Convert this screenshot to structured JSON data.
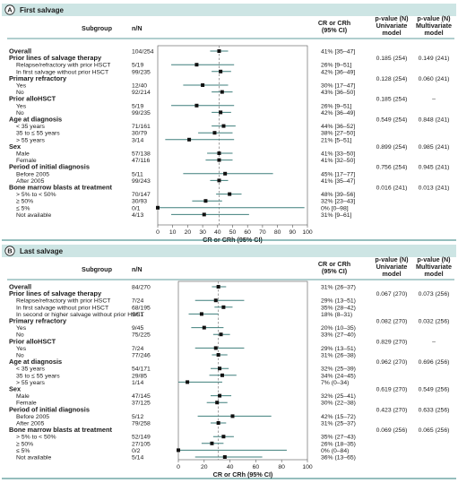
{
  "colors": {
    "band": "#cde5e4",
    "accent": "#2b7d7b",
    "ci_line": "#3f7f7c",
    "marker": "#111111",
    "ref_line": "#8a8a8a",
    "text": "#1a1a1a"
  },
  "chart_data": [
    {
      "type": "forest",
      "panel_letter": "A",
      "panel_title": "First salvage",
      "headers": {
        "subgroup": "Subgroup",
        "nn": "n/N",
        "cr": "CR or CRh (95% CI)",
        "pu": "p-value (N) Univariate model",
        "pm": "p-value (N) Multivariate model"
      },
      "xlabel": "CR or CRh (95% CI)",
      "xlim": [
        0,
        100
      ],
      "xticks": [
        "0",
        "10",
        "20",
        "30",
        "40",
        "50",
        "60",
        "70",
        "80",
        "90",
        "100"
      ],
      "reference_value": 41,
      "rows": [
        {
          "label": "Overall",
          "kind": "group",
          "n": "104/254",
          "est": 41,
          "lo": 35,
          "hi": 47,
          "text": "41% [35–47]",
          "pu": "",
          "pm": ""
        },
        {
          "label": "Prior lines of salvage therapy",
          "kind": "group",
          "n": "",
          "est": null,
          "lo": null,
          "hi": null,
          "text": "",
          "pu": "0.185 (254)",
          "pm": "0.149 (241)"
        },
        {
          "label": "Relapse/refractory with prior HSCT",
          "kind": "item",
          "n": "5/19",
          "est": 26,
          "lo": 9,
          "hi": 51,
          "text": "26% [9–51]",
          "pu": "",
          "pm": ""
        },
        {
          "label": "In first salvage without prior HSCT",
          "kind": "item",
          "n": "99/235",
          "est": 42,
          "lo": 36,
          "hi": 49,
          "text": "42% [36–49]",
          "pu": "",
          "pm": ""
        },
        {
          "label": "Primary refractory",
          "kind": "group",
          "n": "",
          "est": null,
          "lo": null,
          "hi": null,
          "text": "",
          "pu": "0.128 (254)",
          "pm": "0.060 (241)"
        },
        {
          "label": "Yes",
          "kind": "item",
          "n": "12/40",
          "est": 30,
          "lo": 17,
          "hi": 47,
          "text": "30% [17–47]",
          "pu": "",
          "pm": ""
        },
        {
          "label": "No",
          "kind": "item",
          "n": "92/214",
          "est": 43,
          "lo": 36,
          "hi": 50,
          "text": "43% [36–50]",
          "pu": "",
          "pm": ""
        },
        {
          "label": "Prior alloHSCT",
          "kind": "group",
          "n": "",
          "est": null,
          "lo": null,
          "hi": null,
          "text": "",
          "pu": "0.185 (254)",
          "pm": "–"
        },
        {
          "label": "Yes",
          "kind": "item",
          "n": "5/19",
          "est": 26,
          "lo": 9,
          "hi": 51,
          "text": "26% [9–51]",
          "pu": "",
          "pm": ""
        },
        {
          "label": "No",
          "kind": "item",
          "n": "99/235",
          "est": 42,
          "lo": 36,
          "hi": 49,
          "text": "42% [36–49]",
          "pu": "",
          "pm": ""
        },
        {
          "label": "Age at diagnosis",
          "kind": "group",
          "n": "",
          "est": null,
          "lo": null,
          "hi": null,
          "text": "",
          "pu": "0.549 (254)",
          "pm": "0.848 (241)"
        },
        {
          "label": "< 35 years",
          "kind": "item",
          "n": "71/161",
          "est": 44,
          "lo": 36,
          "hi": 52,
          "text": "44% [36–52]",
          "pu": "",
          "pm": ""
        },
        {
          "label": "35 to ≤ 55 years",
          "kind": "item",
          "n": "30/79",
          "est": 38,
          "lo": 27,
          "hi": 50,
          "text": "38% [27–50]",
          "pu": "",
          "pm": ""
        },
        {
          "label": "> 55 years",
          "kind": "item",
          "n": "3/14",
          "est": 21,
          "lo": 5,
          "hi": 51,
          "text": "21% [5–51]",
          "pu": "",
          "pm": ""
        },
        {
          "label": "Sex",
          "kind": "group",
          "n": "",
          "est": null,
          "lo": null,
          "hi": null,
          "text": "",
          "pu": "0.899 (254)",
          "pm": "0.985 (241)"
        },
        {
          "label": "Male",
          "kind": "item",
          "n": "57/138",
          "est": 41,
          "lo": 33,
          "hi": 50,
          "text": "41% [33–50]",
          "pu": "",
          "pm": ""
        },
        {
          "label": "Female",
          "kind": "item",
          "n": "47/116",
          "est": 41,
          "lo": 32,
          "hi": 50,
          "text": "41% [32–50]",
          "pu": "",
          "pm": ""
        },
        {
          "label": "Period of initial diagnosis",
          "kind": "group",
          "n": "",
          "est": null,
          "lo": null,
          "hi": null,
          "text": "",
          "pu": "0.756 (254)",
          "pm": "0.945 (241)"
        },
        {
          "label": "Before 2005",
          "kind": "item",
          "n": "5/11",
          "est": 45,
          "lo": 17,
          "hi": 77,
          "text": "45% [17–77]",
          "pu": "",
          "pm": ""
        },
        {
          "label": "After 2005",
          "kind": "item",
          "n": "99/243",
          "est": 41,
          "lo": 35,
          "hi": 47,
          "text": "41% [35–47]",
          "pu": "",
          "pm": ""
        },
        {
          "label": "Bone marrow blasts at treatment",
          "kind": "group",
          "n": "",
          "est": null,
          "lo": null,
          "hi": null,
          "text": "",
          "pu": "0.016 (241)",
          "pm": "0.013 (241)"
        },
        {
          "label": "> 5% to < 50%",
          "kind": "item",
          "n": "70/147",
          "est": 48,
          "lo": 39,
          "hi": 56,
          "text": "48% [39–56]",
          "pu": "",
          "pm": ""
        },
        {
          "label": "≥ 50%",
          "kind": "item",
          "n": "30/93",
          "est": 32,
          "lo": 23,
          "hi": 43,
          "text": "32% [23–43]",
          "pu": "",
          "pm": ""
        },
        {
          "label": "≤ 5%",
          "kind": "item",
          "n": "0/1",
          "est": 0,
          "lo": 0,
          "hi": 98,
          "text": "0% [0–98]",
          "pu": "",
          "pm": ""
        },
        {
          "label": "Not available",
          "kind": "item",
          "n": "4/13",
          "est": 31,
          "lo": 9,
          "hi": 61,
          "text": "31% [9–61]",
          "pu": "",
          "pm": ""
        }
      ]
    },
    {
      "type": "forest",
      "panel_letter": "B",
      "panel_title": "Last salvage",
      "headers": {
        "subgroup": "Subgroup",
        "nn": "n/N",
        "cr": "CR or CRh (95% CI)",
        "pu": "p-value (N) Univariate model",
        "pm": "p-value (N) Multivariate model"
      },
      "xlabel": "CR or CRh (95% CI)",
      "xlim": [
        0,
        100
      ],
      "xticks": [
        "0",
        "20",
        "40",
        "60",
        "80",
        "100"
      ],
      "reference_value": 31,
      "rows": [
        {
          "label": "Overall",
          "kind": "group",
          "n": "84/270",
          "est": 31,
          "lo": 26,
          "hi": 37,
          "text": "31% (26–37)",
          "pu": "",
          "pm": ""
        },
        {
          "label": "Prior lines of salvage therapy",
          "kind": "group",
          "n": "",
          "est": null,
          "lo": null,
          "hi": null,
          "text": "",
          "pu": "0.067 (270)",
          "pm": "0.073 (256)"
        },
        {
          "label": "Relapse/refractory with prior HSCT",
          "kind": "item",
          "n": "7/24",
          "est": 29,
          "lo": 13,
          "hi": 51,
          "text": "29% (13–51)",
          "pu": "",
          "pm": ""
        },
        {
          "label": "In first salvage without prior HSCT",
          "kind": "item",
          "n": "68/195",
          "est": 35,
          "lo": 28,
          "hi": 42,
          "text": "35% (28–42)",
          "pu": "",
          "pm": ""
        },
        {
          "label": "In second or higher salvage without prior HSCT",
          "kind": "item",
          "n": "9/51",
          "est": 18,
          "lo": 8,
          "hi": 31,
          "text": "18% (8–31)",
          "pu": "",
          "pm": ""
        },
        {
          "label": "Primary refractory",
          "kind": "group",
          "n": "",
          "est": null,
          "lo": null,
          "hi": null,
          "text": "",
          "pu": "0.082 (270)",
          "pm": "0.032 (256)"
        },
        {
          "label": "Yes",
          "kind": "item",
          "n": "9/45",
          "est": 20,
          "lo": 10,
          "hi": 35,
          "text": "20% (10–35)",
          "pu": "",
          "pm": ""
        },
        {
          "label": "No",
          "kind": "item",
          "n": "75/225",
          "est": 33,
          "lo": 27,
          "hi": 40,
          "text": "33% (27–40)",
          "pu": "",
          "pm": ""
        },
        {
          "label": "Prior alloHSCT",
          "kind": "group",
          "n": "",
          "est": null,
          "lo": null,
          "hi": null,
          "text": "",
          "pu": "0.829 (270)",
          "pm": "–"
        },
        {
          "label": "Yes",
          "kind": "item",
          "n": "7/24",
          "est": 29,
          "lo": 13,
          "hi": 51,
          "text": "29% (13–51)",
          "pu": "",
          "pm": ""
        },
        {
          "label": "No",
          "kind": "item",
          "n": "77/246",
          "est": 31,
          "lo": 26,
          "hi": 38,
          "text": "31% (26–38)",
          "pu": "",
          "pm": ""
        },
        {
          "label": "Age at diagnosis",
          "kind": "group",
          "n": "",
          "est": null,
          "lo": null,
          "hi": null,
          "text": "",
          "pu": "0.962 (270)",
          "pm": "0.696 (256)"
        },
        {
          "label": "< 35 years",
          "kind": "item",
          "n": "54/171",
          "est": 32,
          "lo": 25,
          "hi": 39,
          "text": "32% (25–39)",
          "pu": "",
          "pm": ""
        },
        {
          "label": "35 to ≤ 55 years",
          "kind": "item",
          "n": "29/85",
          "est": 34,
          "lo": 24,
          "hi": 45,
          "text": "34% (24–45)",
          "pu": "",
          "pm": ""
        },
        {
          "label": "> 55 years",
          "kind": "item",
          "n": "1/14",
          "est": 7,
          "lo": 0,
          "hi": 34,
          "text": "7% (0–34)",
          "pu": "",
          "pm": ""
        },
        {
          "label": "Sex",
          "kind": "group",
          "n": "",
          "est": null,
          "lo": null,
          "hi": null,
          "text": "",
          "pu": "0.619 (270)",
          "pm": "0.549 (256)"
        },
        {
          "label": "Male",
          "kind": "item",
          "n": "47/145",
          "est": 32,
          "lo": 25,
          "hi": 41,
          "text": "32% (25–41)",
          "pu": "",
          "pm": ""
        },
        {
          "label": "Female",
          "kind": "item",
          "n": "37/125",
          "est": 30,
          "lo": 22,
          "hi": 38,
          "text": "30% (22–38)",
          "pu": "",
          "pm": ""
        },
        {
          "label": "Period of initial diagnosis",
          "kind": "group",
          "n": "",
          "est": null,
          "lo": null,
          "hi": null,
          "text": "",
          "pu": "0.423 (270)",
          "pm": "0.633 (256)"
        },
        {
          "label": "Before 2005",
          "kind": "item",
          "n": "5/12",
          "est": 42,
          "lo": 15,
          "hi": 72,
          "text": "42% (15–72)",
          "pu": "",
          "pm": ""
        },
        {
          "label": "After 2005",
          "kind": "item",
          "n": "79/258",
          "est": 31,
          "lo": 25,
          "hi": 37,
          "text": "31% (25–37)",
          "pu": "",
          "pm": ""
        },
        {
          "label": "Bone marrow blasts at treatment",
          "kind": "group",
          "n": "",
          "est": null,
          "lo": null,
          "hi": null,
          "text": "",
          "pu": "0.069 (256)",
          "pm": "0.065 (256)"
        },
        {
          "label": "> 5% to < 50%",
          "kind": "item",
          "n": "52/149",
          "est": 35,
          "lo": 27,
          "hi": 43,
          "text": "35% (27–43)",
          "pu": "",
          "pm": ""
        },
        {
          "label": "≥ 50%",
          "kind": "item",
          "n": "27/105",
          "est": 26,
          "lo": 18,
          "hi": 35,
          "text": "26% (18–35)",
          "pu": "",
          "pm": ""
        },
        {
          "label": "≤ 5%",
          "kind": "item",
          "n": "0/2",
          "est": 0,
          "lo": 0,
          "hi": 84,
          "text": "0% (0–84)",
          "pu": "",
          "pm": ""
        },
        {
          "label": "Not available",
          "kind": "item",
          "n": "5/14",
          "est": 36,
          "lo": 13,
          "hi": 65,
          "text": "36% (13–65)",
          "pu": "",
          "pm": ""
        }
      ]
    }
  ]
}
